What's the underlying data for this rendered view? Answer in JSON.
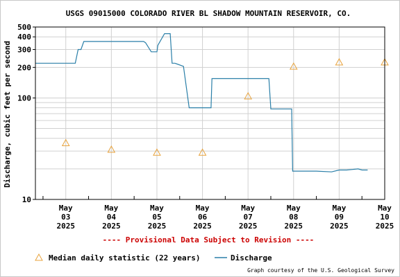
{
  "chart_data": {
    "type": "line",
    "title": "USGS 09015000 COLORADO RIVER BL SHADOW MOUNTAIN RESERVOIR, CO.",
    "ylabel": "Discharge, cubic feet per second",
    "xlabel": "",
    "y_scale": "log",
    "ylim": [
      10,
      500
    ],
    "xlim": [
      "2025-05-02T20:00",
      "2025-05-10T12:00"
    ],
    "y_ticks": [
      10,
      100,
      200,
      300,
      400,
      500
    ],
    "x_ticks": [
      {
        "month": "May",
        "day": "03",
        "year": "2025",
        "date": "2025-05-03"
      },
      {
        "month": "May",
        "day": "04",
        "year": "2025",
        "date": "2025-05-04"
      },
      {
        "month": "May",
        "day": "05",
        "year": "2025",
        "date": "2025-05-05"
      },
      {
        "month": "May",
        "day": "06",
        "year": "2025",
        "date": "2025-05-06"
      },
      {
        "month": "May",
        "day": "07",
        "year": "2025",
        "date": "2025-05-07"
      },
      {
        "month": "May",
        "day": "08",
        "year": "2025",
        "date": "2025-05-08"
      },
      {
        "month": "May",
        "day": "09",
        "year": "2025",
        "date": "2025-05-09"
      },
      {
        "month": "May",
        "day": "10",
        "year": "2025",
        "date": "2025-05-10"
      }
    ],
    "grid": true,
    "series": [
      {
        "name": "Discharge",
        "color": "#2a7fa8",
        "x": [
          "2025-05-02T20:00",
          "2025-05-03T17:00",
          "2025-05-03T18:30",
          "2025-05-03T20:00",
          "2025-05-03T21:30",
          "2025-05-04T06:00",
          "2025-05-04T18:00",
          "2025-05-05T05:00",
          "2025-05-05T06:00",
          "2025-05-05T09:00",
          "2025-05-05T12:00",
          "2025-05-05T12:30",
          "2025-05-05T16:00",
          "2025-05-05T19:00",
          "2025-05-05T20:00",
          "2025-05-05T21:30",
          "2025-05-06T02:00",
          "2025-05-06T05:00",
          "2025-05-06T06:00",
          "2025-05-06T12:00",
          "2025-05-06T16:30",
          "2025-05-06T17:00",
          "2025-05-07T00:00",
          "2025-05-07T12:00",
          "2025-05-07T18:00",
          "2025-05-07T23:00",
          "2025-05-08T00:00",
          "2025-05-08T06:00",
          "2025-05-08T11:00",
          "2025-05-08T11:30",
          "2025-05-08T13:00",
          "2025-05-08T18:00",
          "2025-05-09T00:00",
          "2025-05-09T08:00",
          "2025-05-09T12:00",
          "2025-05-09T16:00",
          "2025-05-09T22:00",
          "2025-05-10T00:00",
          "2025-05-10T03:00"
        ],
        "y": [
          220,
          220,
          300,
          300,
          360,
          360,
          360,
          360,
          350,
          285,
          285,
          330,
          430,
          430,
          220,
          220,
          205,
          80,
          80,
          80,
          80,
          155,
          155,
          155,
          155,
          155,
          78,
          78,
          78,
          19,
          19,
          19,
          19,
          18.7,
          19.5,
          19.5,
          20,
          19.5,
          19.5
        ]
      },
      {
        "name": "Median daily statistic (22 years)",
        "color": "#e8a33d",
        "marker": "triangle",
        "x": [
          "2025-05-03T12:00",
          "2025-05-04T12:00",
          "2025-05-05T12:00",
          "2025-05-06T12:00",
          "2025-05-07T12:00",
          "2025-05-08T12:00",
          "2025-05-09T12:00",
          "2025-05-10T12:00"
        ],
        "y": [
          36,
          31,
          29,
          29,
          104,
          204,
          225,
          225
        ]
      }
    ],
    "provisional_note": "---- Provisional Data Subject to Revision ----",
    "legend": {
      "placement": "bottom",
      "median_label": "Median daily statistic (22 years)",
      "discharge_label": "Discharge"
    },
    "credit": "Graph courtesy of the U.S. Geological Survey"
  }
}
